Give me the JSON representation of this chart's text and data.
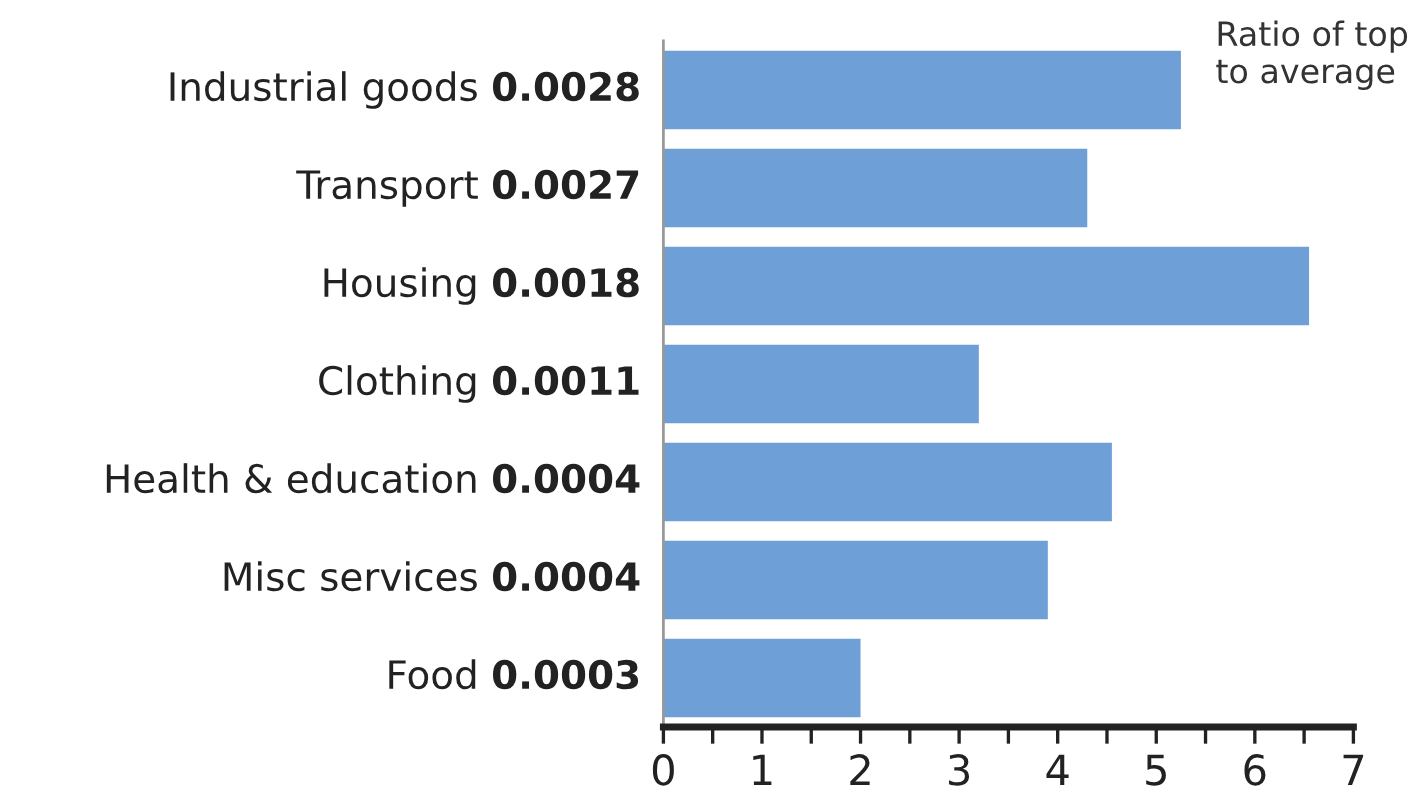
{
  "chart_data": {
    "type": "bar",
    "orientation": "horizontal",
    "xlabel": "Ratio of top\nto average",
    "categories": [
      "Industrial goods 0.0028",
      "Transport 0.0027",
      "Housing 0.0018",
      "Clothing 0.0011",
      "Health & education 0.0004",
      "Misc services 0.0004",
      "Food 0.0003"
    ],
    "values": [
      5.25,
      4.3,
      6.55,
      3.2,
      4.55,
      3.9,
      2.0
    ],
    "color": "#6e9fd6",
    "xlim": [
      0,
      7
    ],
    "xticks": [
      0,
      {
        "value": 0.5,
        "label": null
      },
      1,
      {
        "value": 1.5,
        "label": null
      },
      2,
      {
        "value": 2.5,
        "label": null
      },
      3,
      {
        "value": 3.5,
        "label": null
      },
      4,
      {
        "value": 4.5,
        "label": null
      },
      5,
      {
        "value": 5.5,
        "label": null
      },
      6,
      {
        "value": 6.5,
        "label": null
      },
      7
    ],
    "grid": false
  }
}
